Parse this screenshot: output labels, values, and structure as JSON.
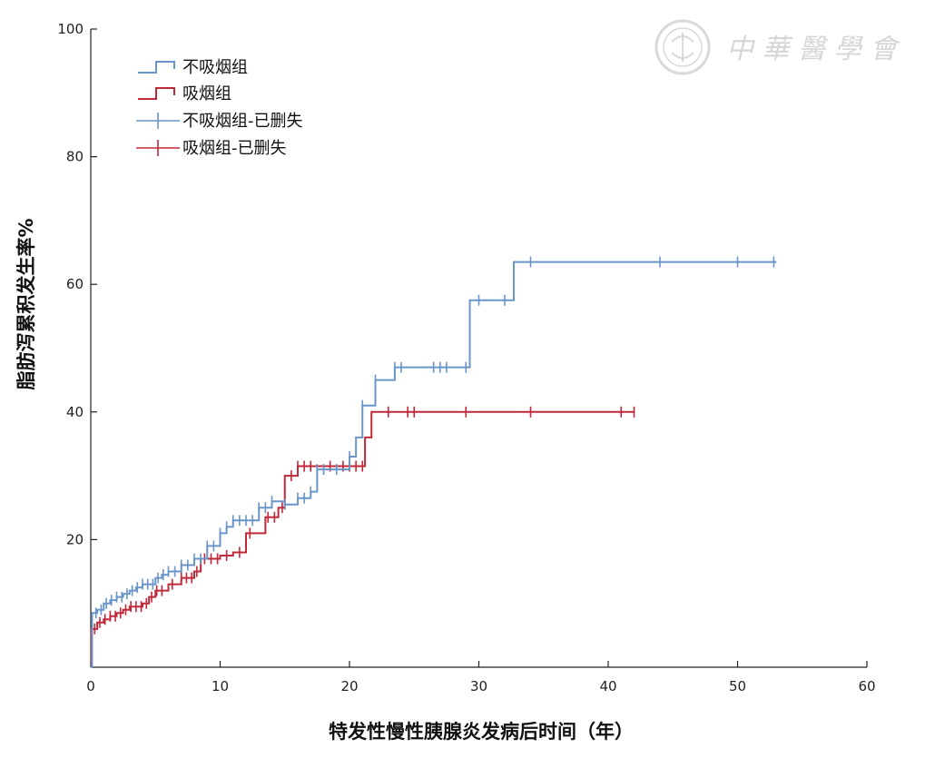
{
  "chart_data": {
    "type": "line",
    "subtype": "kaplan-meier-cumulative-incidence",
    "title": "",
    "xlabel": "特发性慢性胰腺炎发病后时间（年）",
    "ylabel": "脂肪泻累积发生率%",
    "xlim": [
      0,
      60
    ],
    "ylim": [
      0,
      100
    ],
    "x_ticks": [
      "0",
      "10",
      "20",
      "30",
      "40",
      "50",
      "60"
    ],
    "y_ticks": [
      "20",
      "40",
      "60",
      "80",
      "100"
    ],
    "grid": false,
    "legend_position": "top-left",
    "legend": [
      {
        "label": "不吸烟组",
        "kind": "step",
        "color": "#6a95c8"
      },
      {
        "label": "吸烟组",
        "kind": "step",
        "color": "#c0283a"
      },
      {
        "label": "不吸烟组-已删失",
        "kind": "censor",
        "color": "#6a95c8"
      },
      {
        "label": "吸烟组-已删失",
        "kind": "censor",
        "color": "#c0283a"
      }
    ],
    "series": [
      {
        "name": "不吸烟组",
        "color": "#6a95c8",
        "steps": [
          [
            0,
            0
          ],
          [
            0.1,
            8.5
          ],
          [
            0.5,
            9
          ],
          [
            1,
            10
          ],
          [
            1.5,
            10.5
          ],
          [
            2,
            11
          ],
          [
            2.5,
            11.5
          ],
          [
            3,
            12
          ],
          [
            3.5,
            12.5
          ],
          [
            4,
            13
          ],
          [
            5,
            14
          ],
          [
            5.5,
            14.5
          ],
          [
            6,
            15
          ],
          [
            7,
            16
          ],
          [
            8,
            17
          ],
          [
            9,
            19
          ],
          [
            10,
            21
          ],
          [
            10.5,
            22
          ],
          [
            11,
            23
          ],
          [
            13,
            25
          ],
          [
            14,
            26
          ],
          [
            15,
            25.5
          ],
          [
            16,
            26.5
          ],
          [
            17,
            27.5
          ],
          [
            17.5,
            31
          ],
          [
            20,
            33
          ],
          [
            20.5,
            36
          ],
          [
            21,
            41
          ],
          [
            22,
            45
          ],
          [
            23.5,
            47
          ],
          [
            29,
            47
          ],
          [
            29.3,
            57.5
          ],
          [
            32.5,
            57.5
          ],
          [
            32.7,
            63.5
          ],
          [
            53,
            63.5
          ]
        ],
        "censored_x": [
          0.4,
          0.8,
          1.2,
          1.6,
          2,
          2.4,
          2.8,
          3.2,
          3.6,
          4,
          4.4,
          4.8,
          5.2,
          5.6,
          6,
          6.5,
          7,
          7.5,
          8,
          8.5,
          9,
          9.5,
          10,
          10.5,
          11,
          11.5,
          12,
          12.5,
          13,
          13.5,
          14,
          15,
          16,
          16.5,
          17,
          17.5,
          18,
          19,
          20,
          21,
          22,
          23.5,
          24,
          26.5,
          27,
          27.5,
          29,
          30,
          32,
          34,
          44,
          50,
          52.8
        ]
      },
      {
        "name": "吸烟组",
        "color": "#c0283a",
        "steps": [
          [
            0,
            0
          ],
          [
            0.05,
            6
          ],
          [
            0.5,
            7
          ],
          [
            1,
            7.5
          ],
          [
            1.5,
            8
          ],
          [
            2,
            8.5
          ],
          [
            2.5,
            9
          ],
          [
            3,
            9.5
          ],
          [
            4,
            10
          ],
          [
            4.5,
            11
          ],
          [
            5,
            12
          ],
          [
            6,
            13
          ],
          [
            7,
            14
          ],
          [
            8,
            15
          ],
          [
            8.5,
            17
          ],
          [
            10,
            17.5
          ],
          [
            11,
            18
          ],
          [
            12,
            21
          ],
          [
            13.5,
            23.5
          ],
          [
            14.5,
            25
          ],
          [
            15,
            30
          ],
          [
            16,
            31.5
          ],
          [
            21,
            31.5
          ],
          [
            21.2,
            36
          ],
          [
            21.7,
            40
          ],
          [
            42,
            40
          ]
        ],
        "censored_x": [
          0.3,
          0.7,
          1.1,
          1.5,
          1.9,
          2.3,
          2.7,
          3.1,
          3.5,
          3.9,
          4.3,
          4.7,
          5.1,
          5.5,
          6.3,
          7,
          7.4,
          7.8,
          8.2,
          8.8,
          9.3,
          9.8,
          10.5,
          11.5,
          12.3,
          13.7,
          14.2,
          14.8,
          15.5,
          16,
          16.5,
          17,
          18.5,
          19.5,
          20,
          20.5,
          21,
          23,
          24.5,
          25,
          29,
          34,
          41,
          42
        ]
      }
    ]
  },
  "watermark": {
    "text": "中華醫學會",
    "color": "#d6d6d6",
    "emblem_icon": "society-seal-icon"
  }
}
